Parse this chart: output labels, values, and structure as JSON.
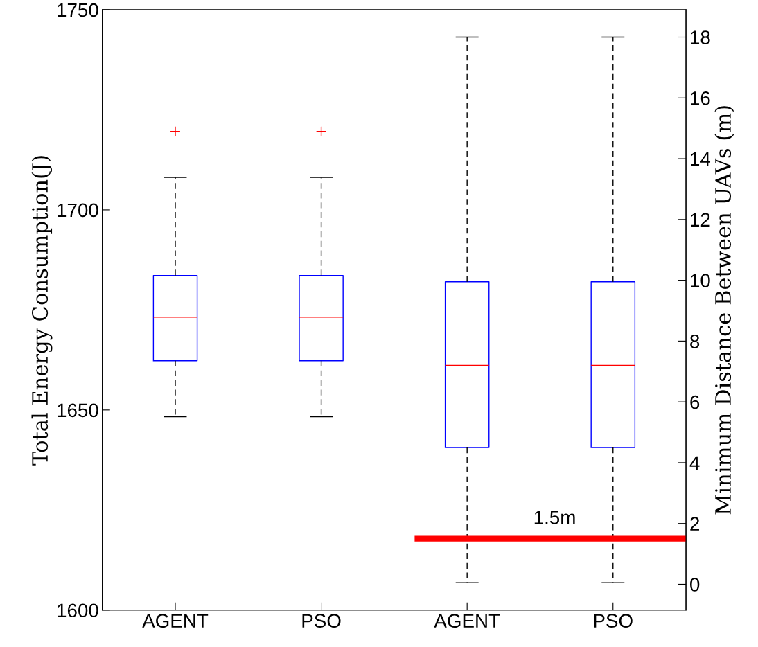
{
  "chart_data": {
    "type": "box",
    "categories": [
      "AGENT",
      "PSO",
      "AGENT",
      "PSO"
    ],
    "ylabel": "Total Energy Consumption(J)",
    "y2label": "Minimum Distance Between UAVs (m)",
    "ylim": [
      1600,
      1750
    ],
    "yticks": [
      1600,
      1650,
      1700,
      1750
    ],
    "y2lim": [
      -0.85,
      18.9
    ],
    "y2ticks": [
      0,
      2,
      4,
      6,
      8,
      10,
      12,
      14,
      16,
      18
    ],
    "series": [
      {
        "color": "#0000ff",
        "boxes": [
          {
            "low": 1648.3,
            "q1": 1662.3,
            "median": 1673.2,
            "q3": 1683.6,
            "high": 1708.1,
            "outliers": [
              1719.6
            ]
          },
          {
            "low": 1648.3,
            "q1": 1662.3,
            "median": 1673.2,
            "q3": 1683.6,
            "high": 1708.1,
            "outliers": [
              1719.6
            ]
          },
          null,
          null
        ]
      },
      {
        "color": "#0000ff",
        "axis": "y2",
        "boxes": [
          null,
          null,
          {
            "low": 0.05,
            "q1": 4.5,
            "median": 7.2,
            "q3": 9.95,
            "high": 18.0
          },
          {
            "low": 0.05,
            "q1": 4.5,
            "median": 7.2,
            "q3": 9.95,
            "high": 18.0
          }
        ]
      }
    ],
    "ref_lines": [
      {
        "axis": "y2",
        "value": 1.5,
        "label": "1.5m",
        "color": "#ff0000"
      }
    ],
    "grid": false
  }
}
